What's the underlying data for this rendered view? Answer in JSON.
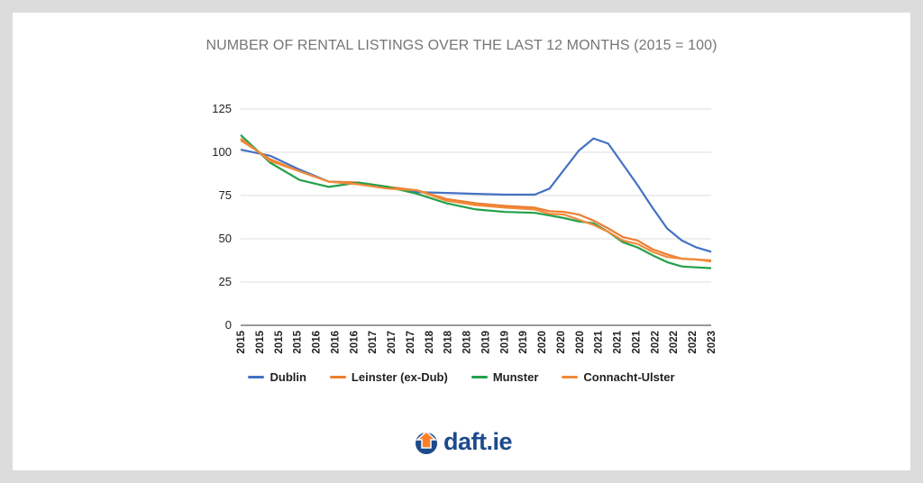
{
  "chart_data": {
    "type": "line",
    "title": "NUMBER OF RENTAL LISTINGS OVER THE LAST 12 MONTHS (2015 = 100)",
    "xlabel": "",
    "ylabel": "",
    "ylim": [
      0,
      125
    ],
    "yticks": [
      0,
      25,
      50,
      75,
      100,
      125
    ],
    "grid": true,
    "legend_position": "bottom",
    "x_tick_labels": [
      "2015",
      "2015",
      "2015",
      "2015",
      "2016",
      "2016",
      "2016",
      "2017",
      "2017",
      "2017",
      "2018",
      "2018",
      "2018",
      "2019",
      "2019",
      "2019",
      "2020",
      "2020",
      "2020",
      "2021",
      "2021",
      "2021",
      "2022",
      "2022",
      "2022",
      "2023"
    ],
    "x": [
      2015.0,
      2015.5,
      2016.0,
      2016.5,
      2017.0,
      2017.5,
      2018.0,
      2018.5,
      2019.0,
      2019.5,
      2020.0,
      2020.25,
      2020.5,
      2020.75,
      2021.0,
      2021.25,
      2021.5,
      2021.75,
      2022.0,
      2022.25,
      2022.5,
      2022.75,
      2023.0
    ],
    "series": [
      {
        "name": "Dublin",
        "color": "#4472c4",
        "values": [
          101.5,
          98,
          90,
          83,
          82.5,
          80,
          77,
          76.5,
          76,
          75.5,
          75.5,
          79,
          90,
          101,
          108,
          105,
          93,
          81,
          68,
          56,
          49,
          45,
          42.5
        ]
      },
      {
        "name": "Leinster (ex-Dub)",
        "color": "#ed7d31",
        "values": [
          107,
          96,
          89,
          83,
          82.5,
          80,
          78,
          73,
          70.5,
          69,
          68,
          66,
          65.5,
          64,
          60.5,
          56,
          51,
          49,
          44,
          41,
          38.5,
          38,
          37.5
        ]
      },
      {
        "name": "Munster",
        "color": "#22a04b",
        "values": [
          110,
          94,
          84,
          80,
          82.5,
          80,
          76,
          70.5,
          67,
          65.5,
          65,
          63.5,
          62,
          60,
          59,
          54,
          48,
          45,
          40.5,
          36.5,
          34,
          33.5,
          33
        ]
      },
      {
        "name": "Connacht-Ulster",
        "color": "#f08a3a",
        "values": [
          108,
          95,
          89,
          83,
          81.5,
          79,
          78,
          72,
          69.5,
          68,
          67,
          64.5,
          64,
          61,
          58,
          54,
          49,
          47,
          42.5,
          39.5,
          38.5,
          38,
          37
        ]
      }
    ]
  },
  "brand": {
    "name": "daft.ie",
    "icon": "house-arrow-icon",
    "color": "#1d4a8c",
    "accent": "#ff7f27"
  }
}
